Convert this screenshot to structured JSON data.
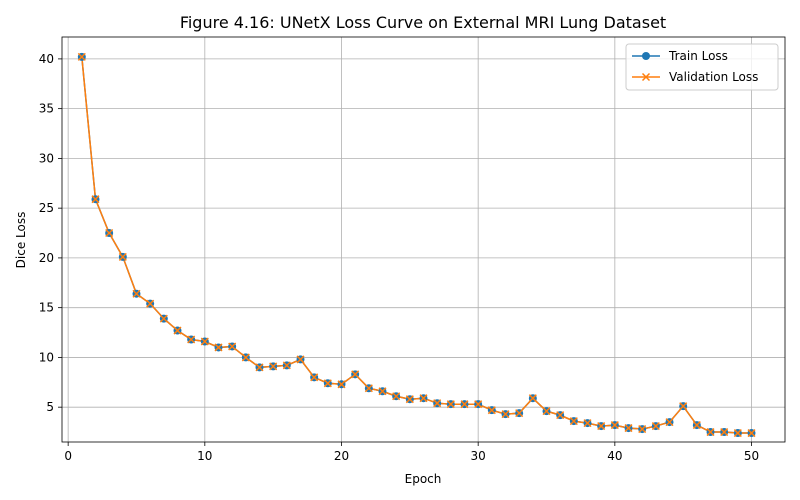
{
  "chart_data": {
    "type": "line",
    "title": "Figure 4.16: UNetX Loss Curve on External MRI Lung Dataset",
    "xlabel": "Epoch",
    "ylabel": "Dice Loss",
    "xlim": [
      -0.45,
      52.45
    ],
    "ylim": [
      1.5,
      42.2
    ],
    "xticks": [
      0,
      10,
      20,
      30,
      40,
      50
    ],
    "yticks": [
      5,
      10,
      15,
      20,
      25,
      30,
      35,
      40
    ],
    "grid": true,
    "legend_position": "top-right",
    "x": [
      1,
      2,
      3,
      4,
      5,
      6,
      7,
      8,
      9,
      10,
      11,
      12,
      13,
      14,
      15,
      16,
      17,
      18,
      19,
      20,
      21,
      22,
      23,
      24,
      25,
      26,
      27,
      28,
      29,
      30,
      31,
      32,
      33,
      34,
      35,
      36,
      37,
      38,
      39,
      40,
      41,
      42,
      43,
      44,
      45,
      46,
      47,
      48,
      49,
      50
    ],
    "series": [
      {
        "name": "Train Loss",
        "color": "#1f77b4",
        "marker": "circle",
        "values": [
          40.2,
          25.9,
          22.5,
          20.1,
          16.4,
          15.4,
          13.9,
          12.7,
          11.8,
          11.6,
          11.0,
          11.1,
          10.0,
          9.0,
          9.1,
          9.2,
          9.8,
          8.0,
          7.4,
          7.3,
          8.3,
          6.9,
          6.6,
          6.1,
          5.8,
          5.9,
          5.4,
          5.3,
          5.3,
          5.3,
          4.7,
          4.3,
          4.4,
          5.9,
          4.6,
          4.2,
          3.6,
          3.4,
          3.1,
          3.2,
          2.9,
          2.8,
          3.1,
          3.5,
          5.1,
          3.2,
          2.5,
          2.5,
          2.4,
          2.4
        ]
      },
      {
        "name": "Validation Loss",
        "color": "#ff7f0e",
        "marker": "x",
        "values": [
          40.2,
          25.9,
          22.5,
          20.1,
          16.4,
          15.4,
          13.9,
          12.7,
          11.8,
          11.6,
          11.0,
          11.1,
          10.0,
          9.0,
          9.1,
          9.2,
          9.8,
          8.0,
          7.4,
          7.3,
          8.3,
          6.9,
          6.6,
          6.1,
          5.8,
          5.9,
          5.4,
          5.3,
          5.3,
          5.3,
          4.7,
          4.3,
          4.4,
          5.9,
          4.6,
          4.2,
          3.6,
          3.4,
          3.1,
          3.2,
          2.9,
          2.8,
          3.1,
          3.5,
          5.1,
          3.2,
          2.5,
          2.5,
          2.4,
          2.4
        ]
      }
    ]
  }
}
